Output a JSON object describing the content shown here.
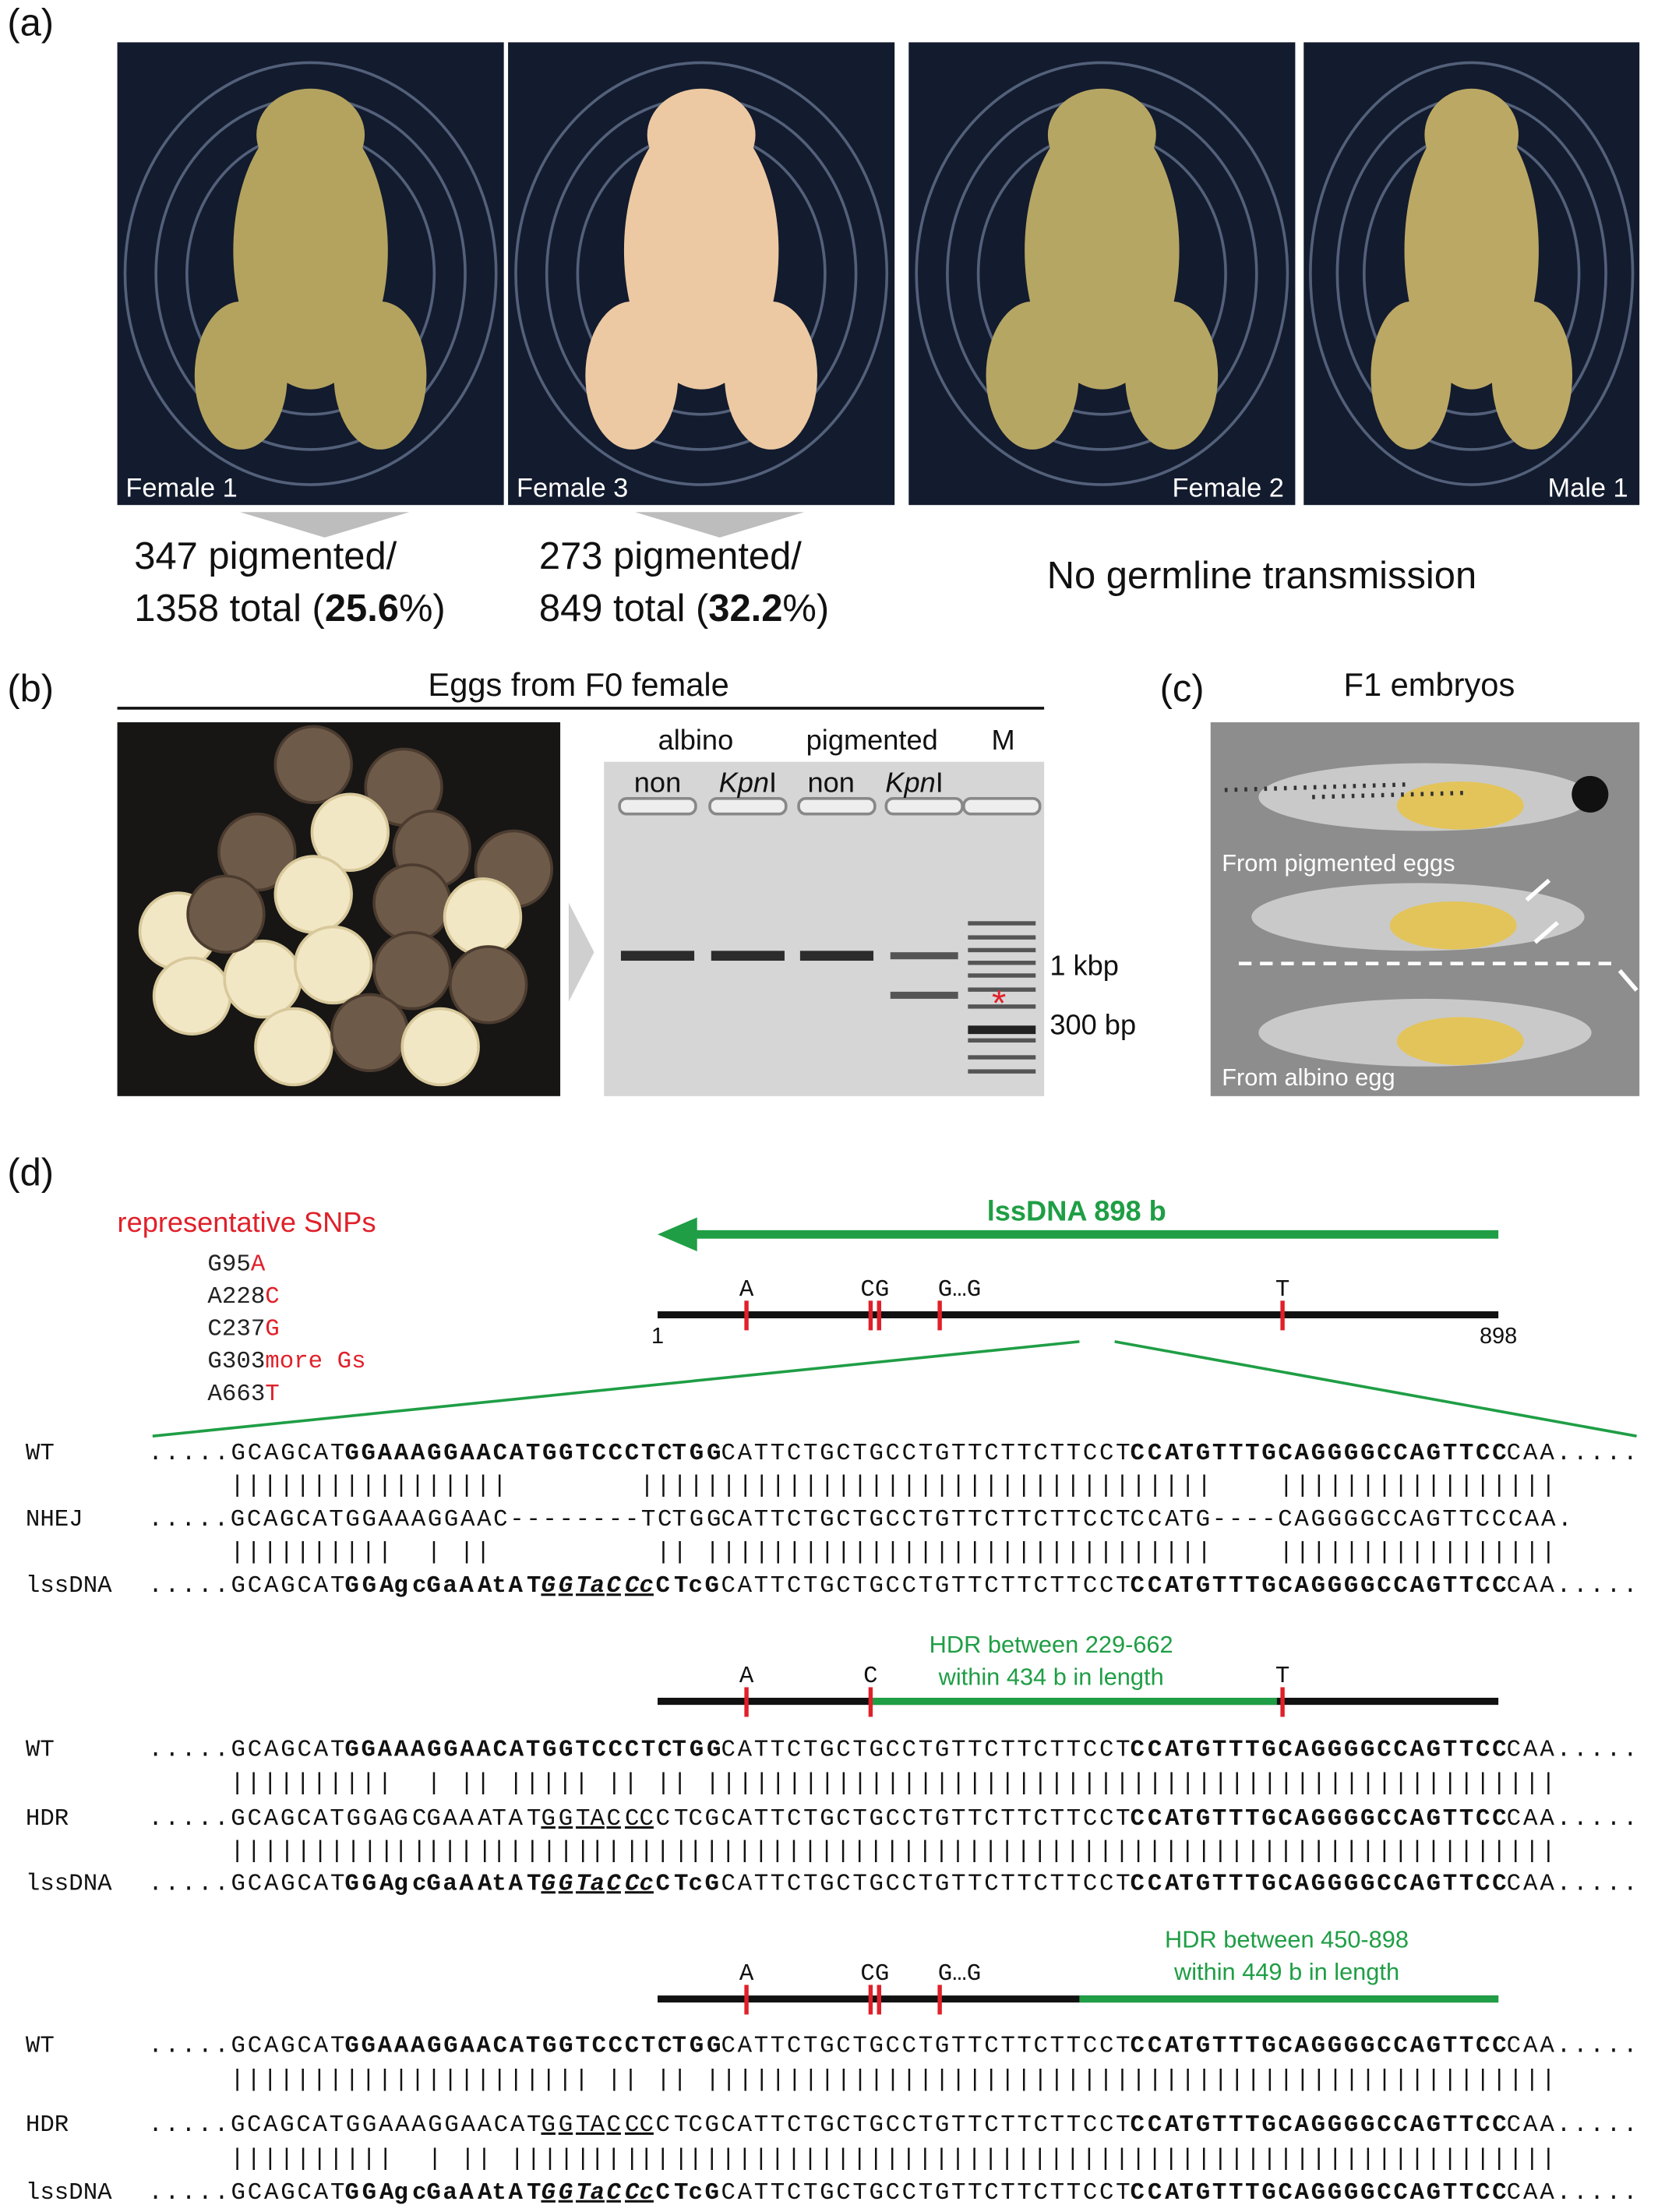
{
  "panel_a": {
    "label": "(a)",
    "photos": [
      "Female 1",
      "Female 3",
      "Female 2",
      "Male 1"
    ],
    "counts": [
      {
        "line1": "347 pigmented/",
        "line2": [
          "1358 total (",
          "25.6",
          "%)"
        ]
      },
      {
        "line1": "273 pigmented/",
        "line2": [
          "849 total (",
          "32.2",
          "%)"
        ]
      }
    ],
    "note": "No germline transmission"
  },
  "panel_b": {
    "label": "(b)",
    "title": "Eggs from F0 female",
    "groups": [
      "albino",
      "pigmented",
      "M"
    ],
    "lanes": [
      {
        "roman": "non"
      },
      {
        "italic": "Kpn",
        "roman": "I"
      },
      {
        "roman": "non"
      },
      {
        "italic": "Kpn",
        "roman": "I"
      }
    ],
    "markers": [
      "1 kbp",
      "300 bp"
    ],
    "asterisk": "*"
  },
  "panel_c": {
    "label": "(c)",
    "title": "F1 embryos",
    "captions": [
      "From pigmented eggs",
      "From albino egg"
    ]
  },
  "panel_d": {
    "label": "(d)",
    "snp_title": "representative SNPs",
    "snps": [
      [
        "G95",
        "A"
      ],
      [
        "A228",
        "C"
      ],
      [
        "C237",
        "G"
      ],
      [
        "G303",
        "more Gs"
      ],
      [
        "A663",
        "T"
      ]
    ],
    "construct": "lssDNA 898 b",
    "start": "1",
    "end": "898",
    "snp_marks": [
      "A",
      "CG",
      "G…G",
      "T"
    ],
    "blocks": [
      {
        "rows": [
          {
            "label": "WT",
            "segments": [
              [
                ".....GCAGCAT",
                "#222222",
                "normal"
              ],
              [
                "GGAAAGGAACATGGTCCCTC",
                "#2020c8",
                "bold"
              ],
              [
                "TGG",
                "#f5b400",
                "bold"
              ],
              [
                "CATTCTGCTGCCTGTTCTTCTTCCT",
                "#222222",
                "normal"
              ],
              [
                "CCA",
                "#f5b400",
                "bold"
              ],
              [
                "TGTTTGCAGGGGCCAGTTCC",
                "#2020c8",
                "bold"
              ],
              [
                "CAA.....",
                "#222222",
                "normal"
              ]
            ]
          },
          {
            "segments": [
              [
                "|||||||||||||||||        |||||||||||||||||||||||||||||||||||    |||||||||||||||||",
                "#222222",
                "normal"
              ]
            ]
          },
          {
            "label": "NHEJ",
            "segments": [
              [
                ".....GCAGCATGGAAAGGAAC--------TC",
                "#222222",
                "normal"
              ],
              [
                "TGG",
                "#f5b400",
                "normal"
              ],
              [
                "CATTCTGCTGCCTGTTCTTCTTCCT",
                "#222222",
                "normal"
              ],
              [
                "CCA",
                "#f5b400",
                "normal"
              ],
              [
                "TG----CAGGGGCCAGTTCCCAA.",
                "#222222",
                "normal"
              ]
            ]
          },
          {
            "segments": [
              [
                "||||||||||  | ||          || |||||||||||||||||||||||||||||||    |||||||||||||||||",
                "#222222",
                "normal"
              ]
            ]
          },
          {
            "label": "lssDNA",
            "segments": [
              [
                ".....GCAGCAT",
                "#1f9e45",
                "normal"
              ],
              [
                "GGA",
                "#1f9e45",
                "bold"
              ],
              [
                "gc",
                "#e0202a",
                "bold"
              ],
              [
                "G",
                "#1f9e45",
                "bold"
              ],
              [
                "a",
                "#e0202a",
                "bold"
              ],
              [
                "AA",
                "#1f9e45",
                "bold"
              ],
              [
                "t",
                "#e0202a",
                "bold"
              ],
              [
                "AT",
                "#1f9e45",
                "bold"
              ],
              [
                "GGT",
                "#1f9e45",
                "bold italic underline"
              ],
              [
                "a",
                "#e0202a",
                "bold italic underline"
              ],
              [
                "CC",
                "#1f9e45",
                "bold italic underline"
              ],
              [
                "c",
                "#e0202a",
                "bold italic underline"
              ],
              [
                "CT",
                "#1f9e45",
                "bold"
              ],
              [
                "c",
                "#e0202a",
                "bold"
              ],
              [
                "G",
                "#1f9e45",
                "bold"
              ],
              [
                "CATTCTGCTGCCTGTTCTTCTTCCT",
                "#1f9e45",
                "normal"
              ],
              [
                "CCA",
                "#f5b400",
                "bold"
              ],
              [
                "TGTTTGCAGGGGCCAGTTCC",
                "#2020c8",
                "bold"
              ],
              [
                "CAA.....",
                "#1f9e45",
                "normal"
              ]
            ]
          }
        ]
      },
      {
        "map": {
          "marks": [
            "A",
            "C",
            "T"
          ],
          "note": [
            "HDR between 229-662",
            "within 434 b in length"
          ]
        },
        "rows": [
          {
            "label": "WT",
            "segments": [
              [
                ".....GCAGCAT",
                "#222222",
                "normal"
              ],
              [
                "GGAAAGGAACATGGTCCCTC",
                "#2020c8",
                "bold"
              ],
              [
                "TGG",
                "#f5b400",
                "bold"
              ],
              [
                "CATTCTGCTGCCTGTTCTTCTTCCT",
                "#222222",
                "normal"
              ],
              [
                "CCA",
                "#f5b400",
                "bold"
              ],
              [
                "TGTTTGCAGGGGCCAGTTCC",
                "#2020c8",
                "bold"
              ],
              [
                "CAA.....",
                "#222222",
                "normal"
              ]
            ]
          },
          {
            "segments": [
              [
                "||||||||||  | || ||||| || || ||||||||||||||||||||||||||||||||||||||||||||||||||||",
                "#222222",
                "normal"
              ]
            ]
          },
          {
            "label": "HDR",
            "segments": [
              [
                ".....GCAGCATGGA",
                "#222222",
                "normal"
              ],
              [
                "GC",
                "#e0202a",
                "normal"
              ],
              [
                "G",
                "#222222",
                "normal"
              ],
              [
                "A",
                "#e0202a",
                "normal"
              ],
              [
                "AA",
                "#222222",
                "normal"
              ],
              [
                "T",
                "#e0202a",
                "normal"
              ],
              [
                "AT",
                "#222222",
                "normal"
              ],
              [
                "GGT",
                "#222222",
                "underline"
              ],
              [
                "A",
                "#e0202a",
                "underline"
              ],
              [
                "CC",
                "#222222",
                "underline"
              ],
              [
                "C",
                "#e0202a",
                "underline"
              ],
              [
                "CT",
                "#222222",
                "normal"
              ],
              [
                "C",
                "#e0202a",
                "normal"
              ],
              [
                "GCATTCTGCTGCCTGTTCTTCTTCCT",
                "#222222",
                "normal"
              ],
              [
                "CCA",
                "#f5b400",
                "bold"
              ],
              [
                "TGTTTGCAGGGGCCAGTTCC",
                "#2020c8",
                "bold"
              ],
              [
                "CAA.....",
                "#222222",
                "normal"
              ]
            ]
          },
          {
            "segments": [
              [
                "||||||||||",
                "#222222",
                "normal"
              ],
              [
                "||",
                "#e0202a",
                "normal"
              ],
              [
                "|",
                "#222222",
                "normal"
              ],
              [
                "|",
                "#e0202a",
                "normal"
              ],
              [
                "||",
                "#222222",
                "normal"
              ],
              [
                "|",
                "#e0202a",
                "normal"
              ],
              [
                "|||||",
                "#222222",
                "normal"
              ],
              [
                "|",
                "#e0202a",
                "normal"
              ],
              [
                "||",
                "#222222",
                "normal"
              ],
              [
                "|",
                "#e0202a",
                "normal"
              ],
              [
                "||",
                "#222222",
                "normal"
              ],
              [
                "|",
                "#e0202a",
                "normal"
              ],
              [
                "||||||||||||||||||||||||||||||||||||||||||||||||||||",
                "#222222",
                "normal"
              ]
            ]
          },
          {
            "label": "lssDNA",
            "segments": [
              [
                ".....GCAGCAT",
                "#1f9e45",
                "normal"
              ],
              [
                "GGA",
                "#1f9e45",
                "bold"
              ],
              [
                "gc",
                "#e0202a",
                "bold"
              ],
              [
                "G",
                "#1f9e45",
                "bold"
              ],
              [
                "a",
                "#e0202a",
                "bold"
              ],
              [
                "AA",
                "#1f9e45",
                "bold"
              ],
              [
                "t",
                "#e0202a",
                "bold"
              ],
              [
                "AT",
                "#1f9e45",
                "bold"
              ],
              [
                "GGT",
                "#1f9e45",
                "bold italic underline"
              ],
              [
                "a",
                "#e0202a",
                "bold italic underline"
              ],
              [
                "CC",
                "#1f9e45",
                "bold italic underline"
              ],
              [
                "c",
                "#e0202a",
                "bold italic underline"
              ],
              [
                "CT",
                "#1f9e45",
                "bold"
              ],
              [
                "c",
                "#e0202a",
                "bold"
              ],
              [
                "G",
                "#1f9e45",
                "bold"
              ],
              [
                "CATTCTGCTGCCTGTTCTTCTTCCT",
                "#1f9e45",
                "normal"
              ],
              [
                "CCA",
                "#f5b400",
                "bold"
              ],
              [
                "TGTTTGCAGGGGCCAGTTCC",
                "#2020c8",
                "bold"
              ],
              [
                "CAA.....",
                "#1f9e45",
                "normal"
              ]
            ]
          }
        ]
      },
      {
        "map": {
          "marks": [
            "A",
            "CG",
            "G…G"
          ],
          "note": [
            "HDR between 450-898",
            "within 449 b in length"
          ]
        },
        "rows": [
          {
            "label": "WT",
            "segments": [
              [
                ".....GCAGCAT",
                "#222222",
                "normal"
              ],
              [
                "GGAAAGGAACATGGTCCCTC",
                "#2020c8",
                "bold"
              ],
              [
                "TGG",
                "#f5b400",
                "bold"
              ],
              [
                "CATTCTGCTGCCTGTTCTTCTTCCT",
                "#222222",
                "normal"
              ],
              [
                "CCA",
                "#f5b400",
                "bold"
              ],
              [
                "TGTTTGCAGGGGCCAGTTCC",
                "#2020c8",
                "bold"
              ],
              [
                "CAA.....",
                "#222222",
                "normal"
              ]
            ]
          },
          {
            "segments": [
              [
                "|||||||||||||||||||||| || || ||||||||||||||||||||||||||||||||||||||||||||||||||||",
                "#222222",
                "normal"
              ]
            ]
          },
          {
            "label": "HDR",
            "segments": [
              [
                ".....GCAGCATGGAAAGGAACAT",
                "#222222",
                "normal"
              ],
              [
                "GGT",
                "#222222",
                "underline"
              ],
              [
                "A",
                "#e0202a",
                "underline"
              ],
              [
                "CC",
                "#222222",
                "underline"
              ],
              [
                "C",
                "#e0202a",
                "underline"
              ],
              [
                "CT",
                "#222222",
                "normal"
              ],
              [
                "C",
                "#e0202a",
                "normal"
              ],
              [
                "GCATTCTGCTGCCTGTTCTTCTTCCT",
                "#222222",
                "normal"
              ],
              [
                "CCA",
                "#f5b400",
                "bold"
              ],
              [
                "TGTTTGCAGGGGCCAGTTCC",
                "#2020c8",
                "bold"
              ],
              [
                "CAA.....",
                "#222222",
                "normal"
              ]
            ]
          },
          {
            "segments": [
              [
                "||||||||||  | || |||||",
                "#222222",
                "normal"
              ],
              [
                "|",
                "#e0202a",
                "normal"
              ],
              [
                "||",
                "#222222",
                "normal"
              ],
              [
                "|",
                "#e0202a",
                "normal"
              ],
              [
                "||",
                "#222222",
                "normal"
              ],
              [
                "|",
                "#e0202a",
                "normal"
              ],
              [
                "||||||||||||||||||||||||||||||||||||||||||||||||||||",
                "#222222",
                "normal"
              ]
            ]
          },
          {
            "label": "lssDNA",
            "segments": [
              [
                ".....GCAGCAT",
                "#1f9e45",
                "normal"
              ],
              [
                "GGA",
                "#1f9e45",
                "bold"
              ],
              [
                "gc",
                "#e0202a",
                "bold"
              ],
              [
                "G",
                "#1f9e45",
                "bold"
              ],
              [
                "a",
                "#e0202a",
                "bold"
              ],
              [
                "AA",
                "#1f9e45",
                "bold"
              ],
              [
                "t",
                "#e0202a",
                "bold"
              ],
              [
                "AT",
                "#1f9e45",
                "bold"
              ],
              [
                "GGT",
                "#1f9e45",
                "bold italic underline"
              ],
              [
                "a",
                "#e0202a",
                "bold italic underline"
              ],
              [
                "CC",
                "#1f9e45",
                "bold italic underline"
              ],
              [
                "c",
                "#e0202a",
                "bold italic underline"
              ],
              [
                "CT",
                "#1f9e45",
                "bold"
              ],
              [
                "c",
                "#e0202a",
                "bold"
              ],
              [
                "G",
                "#1f9e45",
                "bold"
              ],
              [
                "CATTCTGCTGCCTGTTCTTCTTCCT",
                "#1f9e45",
                "normal"
              ],
              [
                "CCA",
                "#f5b400",
                "bold"
              ],
              [
                "TGTTTGCAGGGGCCAGTTCC",
                "#2020c8",
                "bold"
              ],
              [
                "CAA.....",
                "#1f9e45",
                "normal"
              ]
            ]
          }
        ]
      }
    ]
  }
}
